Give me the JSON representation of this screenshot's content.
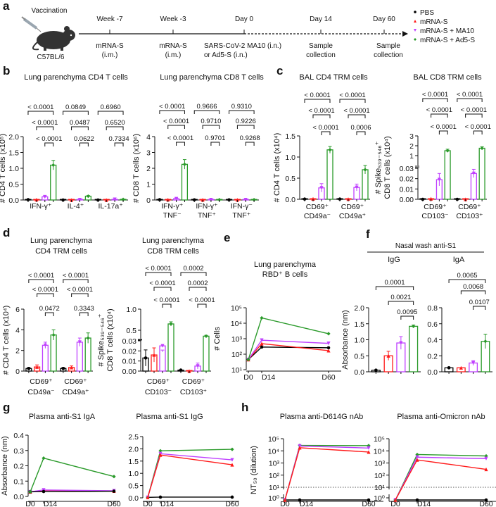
{
  "panel_labels": [
    "a",
    "b",
    "c",
    "d",
    "e",
    "f",
    "g",
    "h"
  ],
  "timeline": {
    "vaccination": "Vaccination",
    "strain": "C57BL/6",
    "events": [
      {
        "top": "Week -7",
        "bottom": [
          "mRNA-S",
          "(i.m.)"
        ]
      },
      {
        "top": "Week -3",
        "bottom": [
          "mRNA-S",
          "(i.m.)"
        ]
      },
      {
        "top": "Day 0",
        "bottom": [
          "SARS-CoV-2 MA10 (i.n.)",
          "or Ad5-S (i.n.)"
        ]
      },
      {
        "top": "Day 14",
        "bottom": [
          "Sample",
          "collection"
        ]
      },
      {
        "top": "Day 60",
        "bottom": [
          "Sample",
          "collection"
        ]
      }
    ]
  },
  "legend": [
    {
      "label": "PBS",
      "color": "#000000",
      "marker": "circle"
    },
    {
      "label": "mRNA-S",
      "color": "#ff1a1a",
      "marker": "triangle-up"
    },
    {
      "label": "mRNA-S + MA10",
      "color": "#bf40ff",
      "marker": "triangle-down"
    },
    {
      "label": "mRNA-S + Ad5-S",
      "color": "#2a9a2a",
      "marker": "diamond"
    }
  ],
  "nasal_header": "Nasal wash anti-S1",
  "chart_data": [
    {
      "type": "bar",
      "title": [
        "Lung parenchyma CD4 T cells"
      ],
      "ylabel": [
        "# CD4 T cells (x10⁵)"
      ],
      "ylim": [
        0,
        2
      ],
      "yticks": [
        {
          "v": 0,
          "l": "0.0"
        },
        {
          "v": 0.5,
          "l": "0.5"
        },
        {
          "v": 1,
          "l": "1.0"
        },
        {
          "v": 1.5,
          "l": "1.5"
        },
        {
          "v": 2,
          "l": "2.0"
        }
      ],
      "groups": [
        {
          "label": [
            "IFN-γ⁺"
          ],
          "values": [
            0.01,
            0.01,
            0.1,
            1.1
          ],
          "sem": [
            0,
            0,
            0.04,
            0.15
          ],
          "pvalues": [
            "< 0.0001",
            "< 0.0001",
            "< 0.0001"
          ]
        },
        {
          "label": [
            "IL-4⁺"
          ],
          "values": [
            0,
            0,
            0.01,
            0.12
          ],
          "sem": [
            0,
            0,
            0,
            0.02
          ],
          "pvalues": [
            "0.0849",
            "0.0487",
            "0.0622"
          ]
        },
        {
          "label": [
            "IL-17a⁺"
          ],
          "values": [
            0,
            0,
            0.02,
            0.02
          ],
          "sem": [
            0,
            0,
            0.005,
            0.005
          ],
          "pvalues": [
            "0.6960",
            "0.6520",
            "0.7334"
          ]
        }
      ]
    },
    {
      "type": "bar",
      "title": [
        "Lung parenchyma CD8 T cells"
      ],
      "ylabel": [
        "# CD8 T cells (x10⁶)"
      ],
      "ylim": [
        0,
        4
      ],
      "yticks": [
        {
          "v": 0,
          "l": "0"
        },
        {
          "v": 1,
          "l": "1"
        },
        {
          "v": 2,
          "l": "2"
        },
        {
          "v": 3,
          "l": "3"
        },
        {
          "v": 4,
          "l": "4"
        }
      ],
      "groups": [
        {
          "label": [
            "IFN-γ⁺",
            "TNF⁻"
          ],
          "values": [
            0.02,
            0.02,
            0.08,
            2.25
          ],
          "sem": [
            0,
            0,
            0.05,
            0.3
          ],
          "pvalues": [
            "< 0.0001",
            "< 0.0001",
            "< 0.0001"
          ]
        },
        {
          "label": [
            "IFN-γ⁺",
            "TNF⁺"
          ],
          "values": [
            0.01,
            0.01,
            0.02,
            0.02
          ],
          "sem": [
            0,
            0,
            0,
            0
          ],
          "pvalues": [
            "0.9666",
            "0.9710",
            "0.9701"
          ]
        },
        {
          "label": [
            "IFN-γ⁻",
            "TNF⁺"
          ],
          "values": [
            0.01,
            0.01,
            0.02,
            0.02
          ],
          "sem": [
            0,
            0,
            0,
            0
          ],
          "pvalues": [
            "0.9310",
            "0.9226",
            "0.9268"
          ]
        }
      ]
    },
    {
      "type": "bar",
      "title": [
        "BAL CD4 TRM cells"
      ],
      "ylabel": [
        "# CD4 T cells (x10⁴)"
      ],
      "ylim": [
        0,
        1.5
      ],
      "yticks": [
        {
          "v": 0,
          "l": "0.0"
        },
        {
          "v": 0.5,
          "l": "0.5"
        },
        {
          "v": 1,
          "l": "1.0"
        },
        {
          "v": 1.5,
          "l": "1.5"
        }
      ],
      "groups": [
        {
          "label": [
            "CD69⁺",
            "CD49a⁻"
          ],
          "values": [
            0.005,
            0.01,
            0.27,
            1.17
          ],
          "sem": [
            0,
            0,
            0.1,
            0.08
          ],
          "pvalues": [
            "< 0.0001",
            "< 0.0001",
            "< 0.0001"
          ]
        },
        {
          "label": [
            "CD69⁺",
            "CD49a⁺"
          ],
          "values": [
            0.005,
            0.005,
            0.28,
            0.7
          ],
          "sem": [
            0,
            0,
            0.08,
            0.1
          ],
          "pvalues": [
            "< 0.0001",
            "< 0.0001",
            "0.0006"
          ]
        }
      ]
    },
    {
      "type": "bar",
      "title": [
        "BAL CD8 TRM cells"
      ],
      "ylabel": [
        "# Spike₅₃₉₋₅₄₆⁺",
        "CD8 T cells (x10⁴)"
      ],
      "ybreak": {
        "low": [
          0,
          0.03
        ],
        "high": [
          0,
          3
        ]
      },
      "yticks": [
        {
          "v": 0,
          "l": "0.00"
        },
        {
          "v": 0.01,
          "l": "0.01"
        },
        {
          "v": 0.02,
          "l": "0.02"
        },
        {
          "v": 0.03,
          "l": "0.03"
        },
        {
          "v": 1,
          "l": "1"
        },
        {
          "v": 2,
          "l": "2"
        },
        {
          "v": 3,
          "l": "3"
        }
      ],
      "groups": [
        {
          "label": [
            "CD69⁺",
            "CD103⁻"
          ],
          "values": [
            0,
            0.0005,
            0.019,
            1.5
          ],
          "sem": [
            0,
            0,
            0.006,
            0.15
          ],
          "pvalues": [
            "< 0.0001",
            "< 0.0001",
            "< 0.0001"
          ]
        },
        {
          "label": [
            "CD69⁺",
            "CD103⁺"
          ],
          "values": [
            0,
            0,
            0.025,
            1.75
          ],
          "sem": [
            0,
            0,
            0.004,
            0.15
          ],
          "pvalues": [
            "< 0.0001",
            "< 0.0001",
            "< 0.0001"
          ]
        }
      ]
    },
    {
      "type": "bar",
      "title": [
        "Lung parenchyma",
        "CD4 TRM cells"
      ],
      "ylabel": [
        "# CD4 T cells (x10⁴)"
      ],
      "ylim": [
        0,
        6
      ],
      "yticks": [
        {
          "v": 0,
          "l": "0"
        },
        {
          "v": 2,
          "l": "2"
        },
        {
          "v": 4,
          "l": "4"
        },
        {
          "v": 6,
          "l": "6"
        }
      ],
      "groups": [
        {
          "label": [
            "CD69⁺",
            "CD49a⁻"
          ],
          "values": [
            0.25,
            0.4,
            2.5,
            3.5
          ],
          "sem": [
            0.1,
            0.2,
            0.3,
            0.5
          ],
          "pvalues": [
            "< 0.0001",
            "< 0.0001",
            "0.0472"
          ]
        },
        {
          "label": [
            "CD69⁺",
            "CD49a⁺"
          ],
          "values": [
            0.25,
            0.35,
            2.8,
            3.2
          ],
          "sem": [
            0.1,
            0.15,
            0.4,
            0.5
          ],
          "pvalues": [
            "< 0.0001",
            "< 0.0001",
            "0.3343"
          ]
        }
      ]
    },
    {
      "type": "bar",
      "title": [
        "Lung parenchyma",
        "CD8 TRM cells"
      ],
      "ylabel": [
        "# Spike₅₃₉₋₅₄₆⁺",
        "CD8 T cells (x10⁴)"
      ],
      "ybreak": {
        "low": [
          0,
          0.03
        ],
        "high": [
          0.3,
          1.0
        ]
      },
      "yticks": [
        {
          "v": 0,
          "l": "0.00"
        },
        {
          "v": 0.01,
          "l": "0.01"
        },
        {
          "v": 0.02,
          "l": "0.02"
        },
        {
          "v": 0.03,
          "l": "0.03"
        },
        {
          "v": 0.5,
          "l": "0.5"
        },
        {
          "v": 1.0,
          "l": "1.0"
        }
      ],
      "groups": [
        {
          "label": [
            "CD69⁺",
            "CD103⁻"
          ],
          "values": [
            0.013,
            0.016,
            0.025,
            0.65
          ],
          "sem": [
            0.008,
            0.007,
            0.006,
            0.05
          ],
          "pvalues": [
            "< 0.0001",
            "< 0.0001",
            "< 0.0001"
          ]
        },
        {
          "label": [
            "CD69⁺",
            "CD103⁺"
          ],
          "values": [
            0.001,
            0,
            0.005,
            0.36
          ],
          "sem": [
            0,
            0,
            0.003,
            0.02
          ],
          "pvalues": [
            "0.0002",
            "0.0002",
            "< 0.0001"
          ]
        }
      ]
    },
    {
      "type": "line",
      "title": [
        "Lung parenchyma",
        "RBD⁺ B cells"
      ],
      "ylabel": [
        "# Cells"
      ],
      "yscale": "log",
      "ylim": [
        10,
        100000
      ],
      "yticks": [
        {
          "v": 10,
          "l": "10¹"
        },
        {
          "v": 100,
          "l": "10²"
        },
        {
          "v": 1000,
          "l": "10³"
        },
        {
          "v": 10000,
          "l": "10⁴"
        },
        {
          "v": 100000,
          "l": "10⁵"
        }
      ],
      "x": [
        0,
        14,
        60
      ],
      "xticklabels": [
        "D0",
        "D14",
        "D60"
      ],
      "series": [
        {
          "group": 0,
          "values": [
            45,
            290,
            260
          ]
        },
        {
          "group": 1,
          "values": [
            45,
            480,
            170
          ]
        },
        {
          "group": 2,
          "values": [
            45,
            800,
            500
          ]
        },
        {
          "group": 3,
          "values": [
            45,
            22000,
            2100
          ]
        }
      ]
    },
    {
      "type": "bar",
      "title": [
        "IgG"
      ],
      "ylabel": [
        "Absorbance (nm)"
      ],
      "ylim": [
        0,
        2
      ],
      "yticks": [
        {
          "v": 0,
          "l": "0.0"
        },
        {
          "v": 0.5,
          "l": "0.5"
        },
        {
          "v": 1,
          "l": "1.0"
        },
        {
          "v": 1.5,
          "l": "1.5"
        },
        {
          "v": 2,
          "l": "2.0"
        }
      ],
      "groups": [
        {
          "label": [],
          "values": [
            0.05,
            0.5,
            0.9,
            1.42
          ],
          "sem": [
            0.01,
            0.14,
            0.2,
            0.04
          ],
          "pvalues": [
            "0.0001",
            "0.0021",
            "0.0095"
          ]
        }
      ]
    },
    {
      "type": "bar",
      "title": [
        "IgA"
      ],
      "ylabel": [],
      "ylim": [
        0,
        0.8
      ],
      "yticks": [
        {
          "v": 0,
          "l": "0.0"
        },
        {
          "v": 0.2,
          "l": "0.2"
        },
        {
          "v": 0.4,
          "l": "0.4"
        },
        {
          "v": 0.6,
          "l": "0.6"
        },
        {
          "v": 0.8,
          "l": "0.8"
        }
      ],
      "groups": [
        {
          "label": [],
          "values": [
            0.05,
            0.05,
            0.11,
            0.38
          ],
          "sem": [
            0,
            0,
            0.03,
            0.09
          ],
          "pvalues": [
            "0.0065",
            "0.0068",
            "0.0107"
          ]
        }
      ]
    },
    {
      "type": "line",
      "title": [
        "Plasma anti-S1 IgA"
      ],
      "ylabel": [
        "Absorbance (nm)"
      ],
      "yscale": "linear",
      "ylim": [
        0,
        0.4
      ],
      "yticks": [
        {
          "v": 0,
          "l": "0.0"
        },
        {
          "v": 0.1,
          "l": "0.1"
        },
        {
          "v": 0.2,
          "l": "0.2"
        },
        {
          "v": 0.3,
          "l": "0.3"
        },
        {
          "v": 0.4,
          "l": "0.4"
        }
      ],
      "x": [
        0,
        14,
        60
      ],
      "xticklabels": [
        "D0",
        "D14",
        "D60"
      ],
      "series": [
        {
          "group": 1,
          "values": [
            0.03,
            0.04,
            0.035
          ]
        },
        {
          "group": 2,
          "values": [
            0.03,
            0.042,
            0.037
          ]
        },
        {
          "group": 0,
          "values": [
            0.03,
            0.032,
            0.034
          ]
        },
        {
          "group": 3,
          "values": [
            0.03,
            0.25,
            0.13
          ]
        }
      ]
    },
    {
      "type": "line",
      "title": [
        "Plasma anti-S1 IgG"
      ],
      "ylabel": [],
      "yscale": "linear",
      "ylim": [
        0,
        2.5
      ],
      "yticks": [
        {
          "v": 0,
          "l": "0.0"
        },
        {
          "v": 0.5,
          "l": "0.5"
        },
        {
          "v": 1,
          "l": "1.0"
        },
        {
          "v": 1.5,
          "l": "1.5"
        },
        {
          "v": 2,
          "l": "2.0"
        },
        {
          "v": 2.5,
          "l": "2.5"
        }
      ],
      "x": [
        0,
        14,
        60
      ],
      "xticklabels": [
        "D0",
        "D14",
        "D60"
      ],
      "series": [
        {
          "group": 0,
          "values": [
            0.02,
            0.03,
            0.03
          ]
        },
        {
          "group": 3,
          "values": [
            0.02,
            1.92,
            1.98
          ]
        },
        {
          "group": 2,
          "values": [
            0.02,
            1.8,
            1.55
          ]
        },
        {
          "group": 1,
          "values": [
            0.02,
            1.75,
            1.35
          ]
        }
      ]
    },
    {
      "type": "line",
      "title": [
        "Plasma anti-D614G nAb"
      ],
      "ylabel": [
        "NT₅₀ (dilution)"
      ],
      "yscale": "log",
      "ylim": [
        1,
        100000
      ],
      "limit_of_detection": 10,
      "yticks": [
        {
          "v": 1,
          "l": "10⁰"
        },
        {
          "v": 10,
          "l": "10¹"
        },
        {
          "v": 100,
          "l": "10²"
        },
        {
          "v": 1000,
          "l": "10³"
        },
        {
          "v": 10000,
          "l": "10⁴"
        },
        {
          "v": 100000,
          "l": "10⁵"
        }
      ],
      "x": [
        0,
        14,
        60
      ],
      "xticklabels": [
        "D0",
        "D14",
        "D60"
      ],
      "series": [
        {
          "group": 0,
          "values": [
            0.5,
            0.5,
            0.5
          ]
        },
        {
          "group": 3,
          "values": [
            0.5,
            28000,
            27000
          ]
        },
        {
          "group": 2,
          "values": [
            0.5,
            25000,
            17000
          ]
        },
        {
          "group": 1,
          "values": [
            0.5,
            18000,
            8000
          ]
        }
      ]
    },
    {
      "type": "line",
      "title": [
        "Plasma anti-Omicron nAb"
      ],
      "ylabel": [],
      "yscale": "log",
      "ylim": [
        1,
        100000
      ],
      "limit_of_detection": 10,
      "yticks": [
        {
          "v": 1,
          "l": "10⁰"
        },
        {
          "v": 10,
          "l": "10¹"
        },
        {
          "v": 100,
          "l": "10²"
        },
        {
          "v": 1000,
          "l": "10³"
        },
        {
          "v": 10000,
          "l": "10⁴"
        },
        {
          "v": 100000,
          "l": "10⁵"
        }
      ],
      "x": [
        0,
        14,
        60
      ],
      "xticklabels": [
        "D0",
        "D14",
        "D60"
      ],
      "series": [
        {
          "group": 0,
          "values": [
            0.5,
            0.5,
            0.5
          ]
        },
        {
          "group": 3,
          "values": [
            0.5,
            5000,
            3800
          ]
        },
        {
          "group": 2,
          "values": [
            0.5,
            3000,
            2300
          ]
        },
        {
          "group": 1,
          "values": [
            0.5,
            1800,
            300
          ]
        }
      ]
    }
  ]
}
